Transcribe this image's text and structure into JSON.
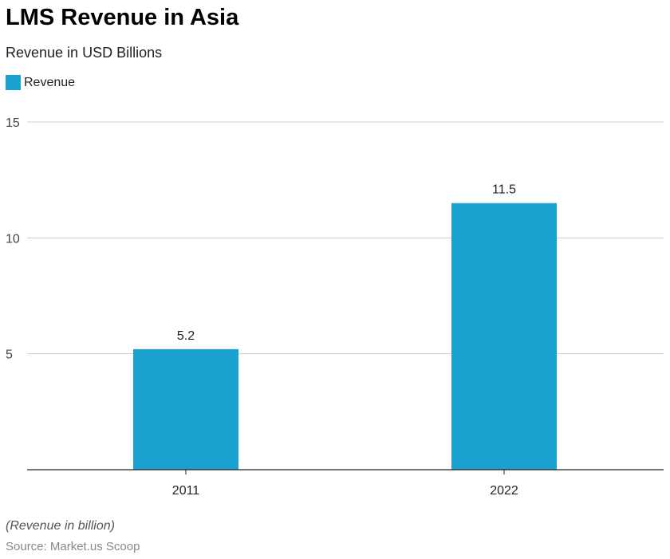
{
  "chart_data": {
    "type": "bar",
    "title": "LMS Revenue in Asia",
    "subtitle": "Revenue in USD Billions",
    "categories": [
      "2011",
      "2022"
    ],
    "series": [
      {
        "name": "Revenue",
        "values": [
          5.2,
          11.5
        ],
        "color": "#1aa1cf"
      }
    ],
    "value_labels": [
      "5.2",
      "11.5"
    ],
    "ylim": [
      0,
      15
    ],
    "yticks": [
      5,
      10,
      15
    ],
    "grid": true,
    "legend": "top-left",
    "note": "(Revenue in billion)",
    "source": "Source: Market.us Scoop"
  }
}
